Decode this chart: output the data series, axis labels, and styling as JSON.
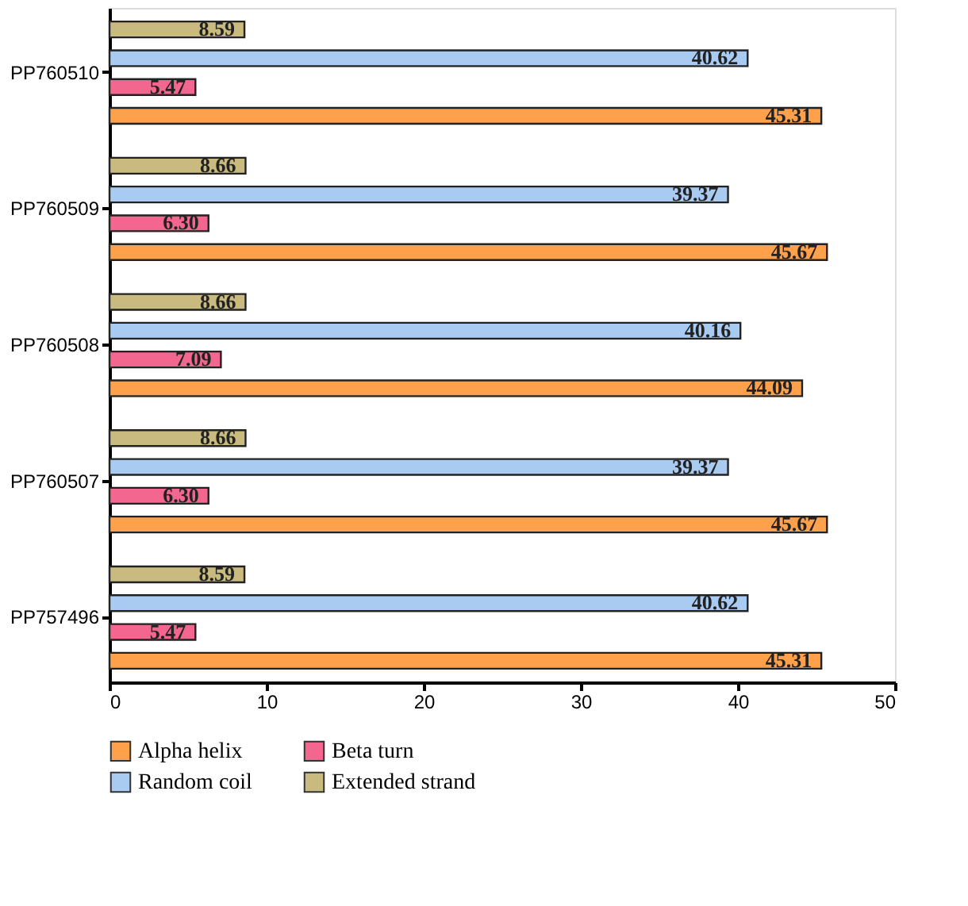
{
  "chart_data": {
    "type": "bar",
    "orientation": "horizontal",
    "categories": [
      "PP760510",
      "PP760509",
      "PP760508",
      "PP760507",
      "PP757496"
    ],
    "series": [
      {
        "name": "Alpha helix",
        "color": "#ffa04a",
        "values": [
          45.31,
          45.67,
          44.09,
          45.67,
          45.31
        ],
        "value_labels": [
          "45.31",
          "45.67",
          "44.09",
          "45.67",
          "45.31"
        ]
      },
      {
        "name": "Beta turn",
        "color": "#f2668f",
        "values": [
          5.47,
          6.3,
          7.09,
          6.3,
          5.47
        ],
        "value_labels": [
          "5.47",
          "6.30",
          "7.09",
          "6.30",
          "5.47"
        ]
      },
      {
        "name": "Random coil",
        "color": "#a9cbf2",
        "values": [
          40.62,
          39.37,
          40.16,
          39.37,
          40.62
        ],
        "value_labels": [
          "40.62",
          "39.37",
          "40.16",
          "39.37",
          "40.62"
        ]
      },
      {
        "name": "Extended strand",
        "color": "#c9ba80",
        "values": [
          8.59,
          8.66,
          8.66,
          8.66,
          8.59
        ],
        "value_labels": [
          "8.59",
          "8.66",
          "8.66",
          "8.66",
          "8.59"
        ]
      }
    ],
    "xlim": [
      0,
      50
    ],
    "xticks": [
      0,
      10,
      20,
      30,
      40,
      50
    ],
    "grid": false,
    "legend": "bottom"
  }
}
